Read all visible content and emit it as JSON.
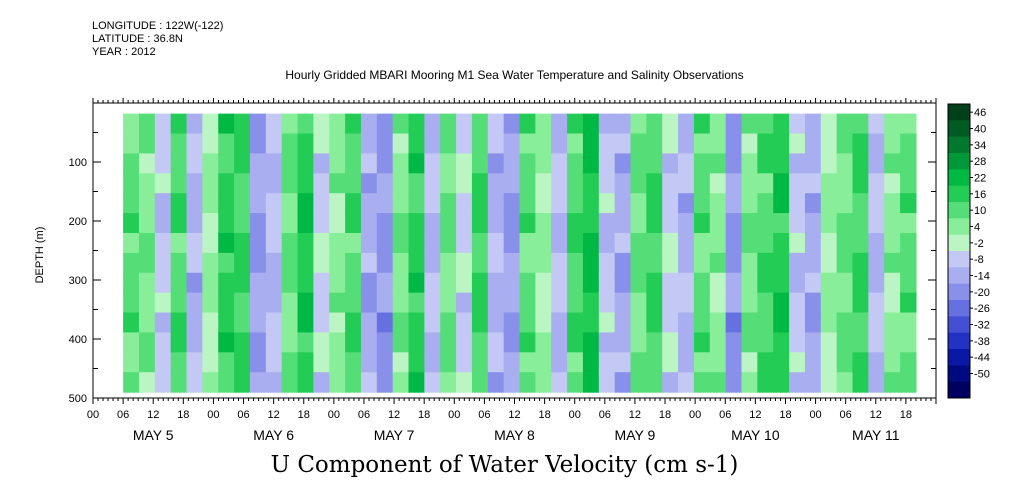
{
  "metadata": {
    "longitude": "LONGITUDE : 122W(-122)",
    "latitude": "LATITUDE : 36.8N",
    "year": "YEAR : 2012"
  },
  "chart_data": {
    "type": "heatmap",
    "title": "Hourly Gridded MBARI Mooring M1 Sea Water Temperature and Salinity Observations",
    "xlabel": "U Component of Water Velocity (cm s-1)",
    "ylabel": "DEPTH (m)",
    "ylim": [
      500,
      0
    ],
    "yticks": [
      100,
      200,
      300,
      400,
      500
    ],
    "hour_ticks": [
      "00",
      "06",
      "12",
      "18",
      "00",
      "06",
      "12",
      "18",
      "00",
      "06",
      "12",
      "18",
      "00",
      "06",
      "12",
      "18",
      "00",
      "06",
      "12",
      "18",
      "00",
      "06",
      "12",
      "18",
      "00",
      "06",
      "12",
      "18"
    ],
    "days": [
      "MAY  5",
      "MAY  6",
      "MAY  7",
      "MAY  8",
      "MAY  9",
      "MAY 10",
      "MAY 11"
    ],
    "colorbar": {
      "levels": [
        46,
        40,
        34,
        28,
        22,
        16,
        10,
        4,
        -2,
        -8,
        -14,
        -20,
        -26,
        -32,
        -38,
        -44,
        -50
      ],
      "colors": [
        "#00401a",
        "#005a24",
        "#00782e",
        "#009838",
        "#00b844",
        "#22cc55",
        "#55dd77",
        "#88ee99",
        "#bbf5c4",
        "#c4c8f4",
        "#a8aef0",
        "#8890ea",
        "#6670e0",
        "#4450d4",
        "#2232c2",
        "#0a18a8",
        "#000a80",
        "#000060"
      ]
    },
    "data_profile": {
      "time_start_hours": 6,
      "time_end_hours": 164,
      "depth_top": 18,
      "depth_bottom": 490,
      "band_values": [
        12,
        8,
        -6,
        14,
        -10,
        4,
        18,
        16,
        -14,
        -8,
        10,
        20,
        -4,
        6,
        14,
        -12,
        -16,
        8,
        18,
        -8,
        10,
        -4,
        16,
        -10,
        -14,
        12,
        4,
        -8,
        14,
        22,
        -6,
        -12,
        10,
        16,
        -4,
        -10,
        12,
        6,
        -16,
        8,
        14,
        20,
        -6,
        -12,
        4,
        10,
        16,
        -8,
        6,
        12
      ]
    }
  }
}
